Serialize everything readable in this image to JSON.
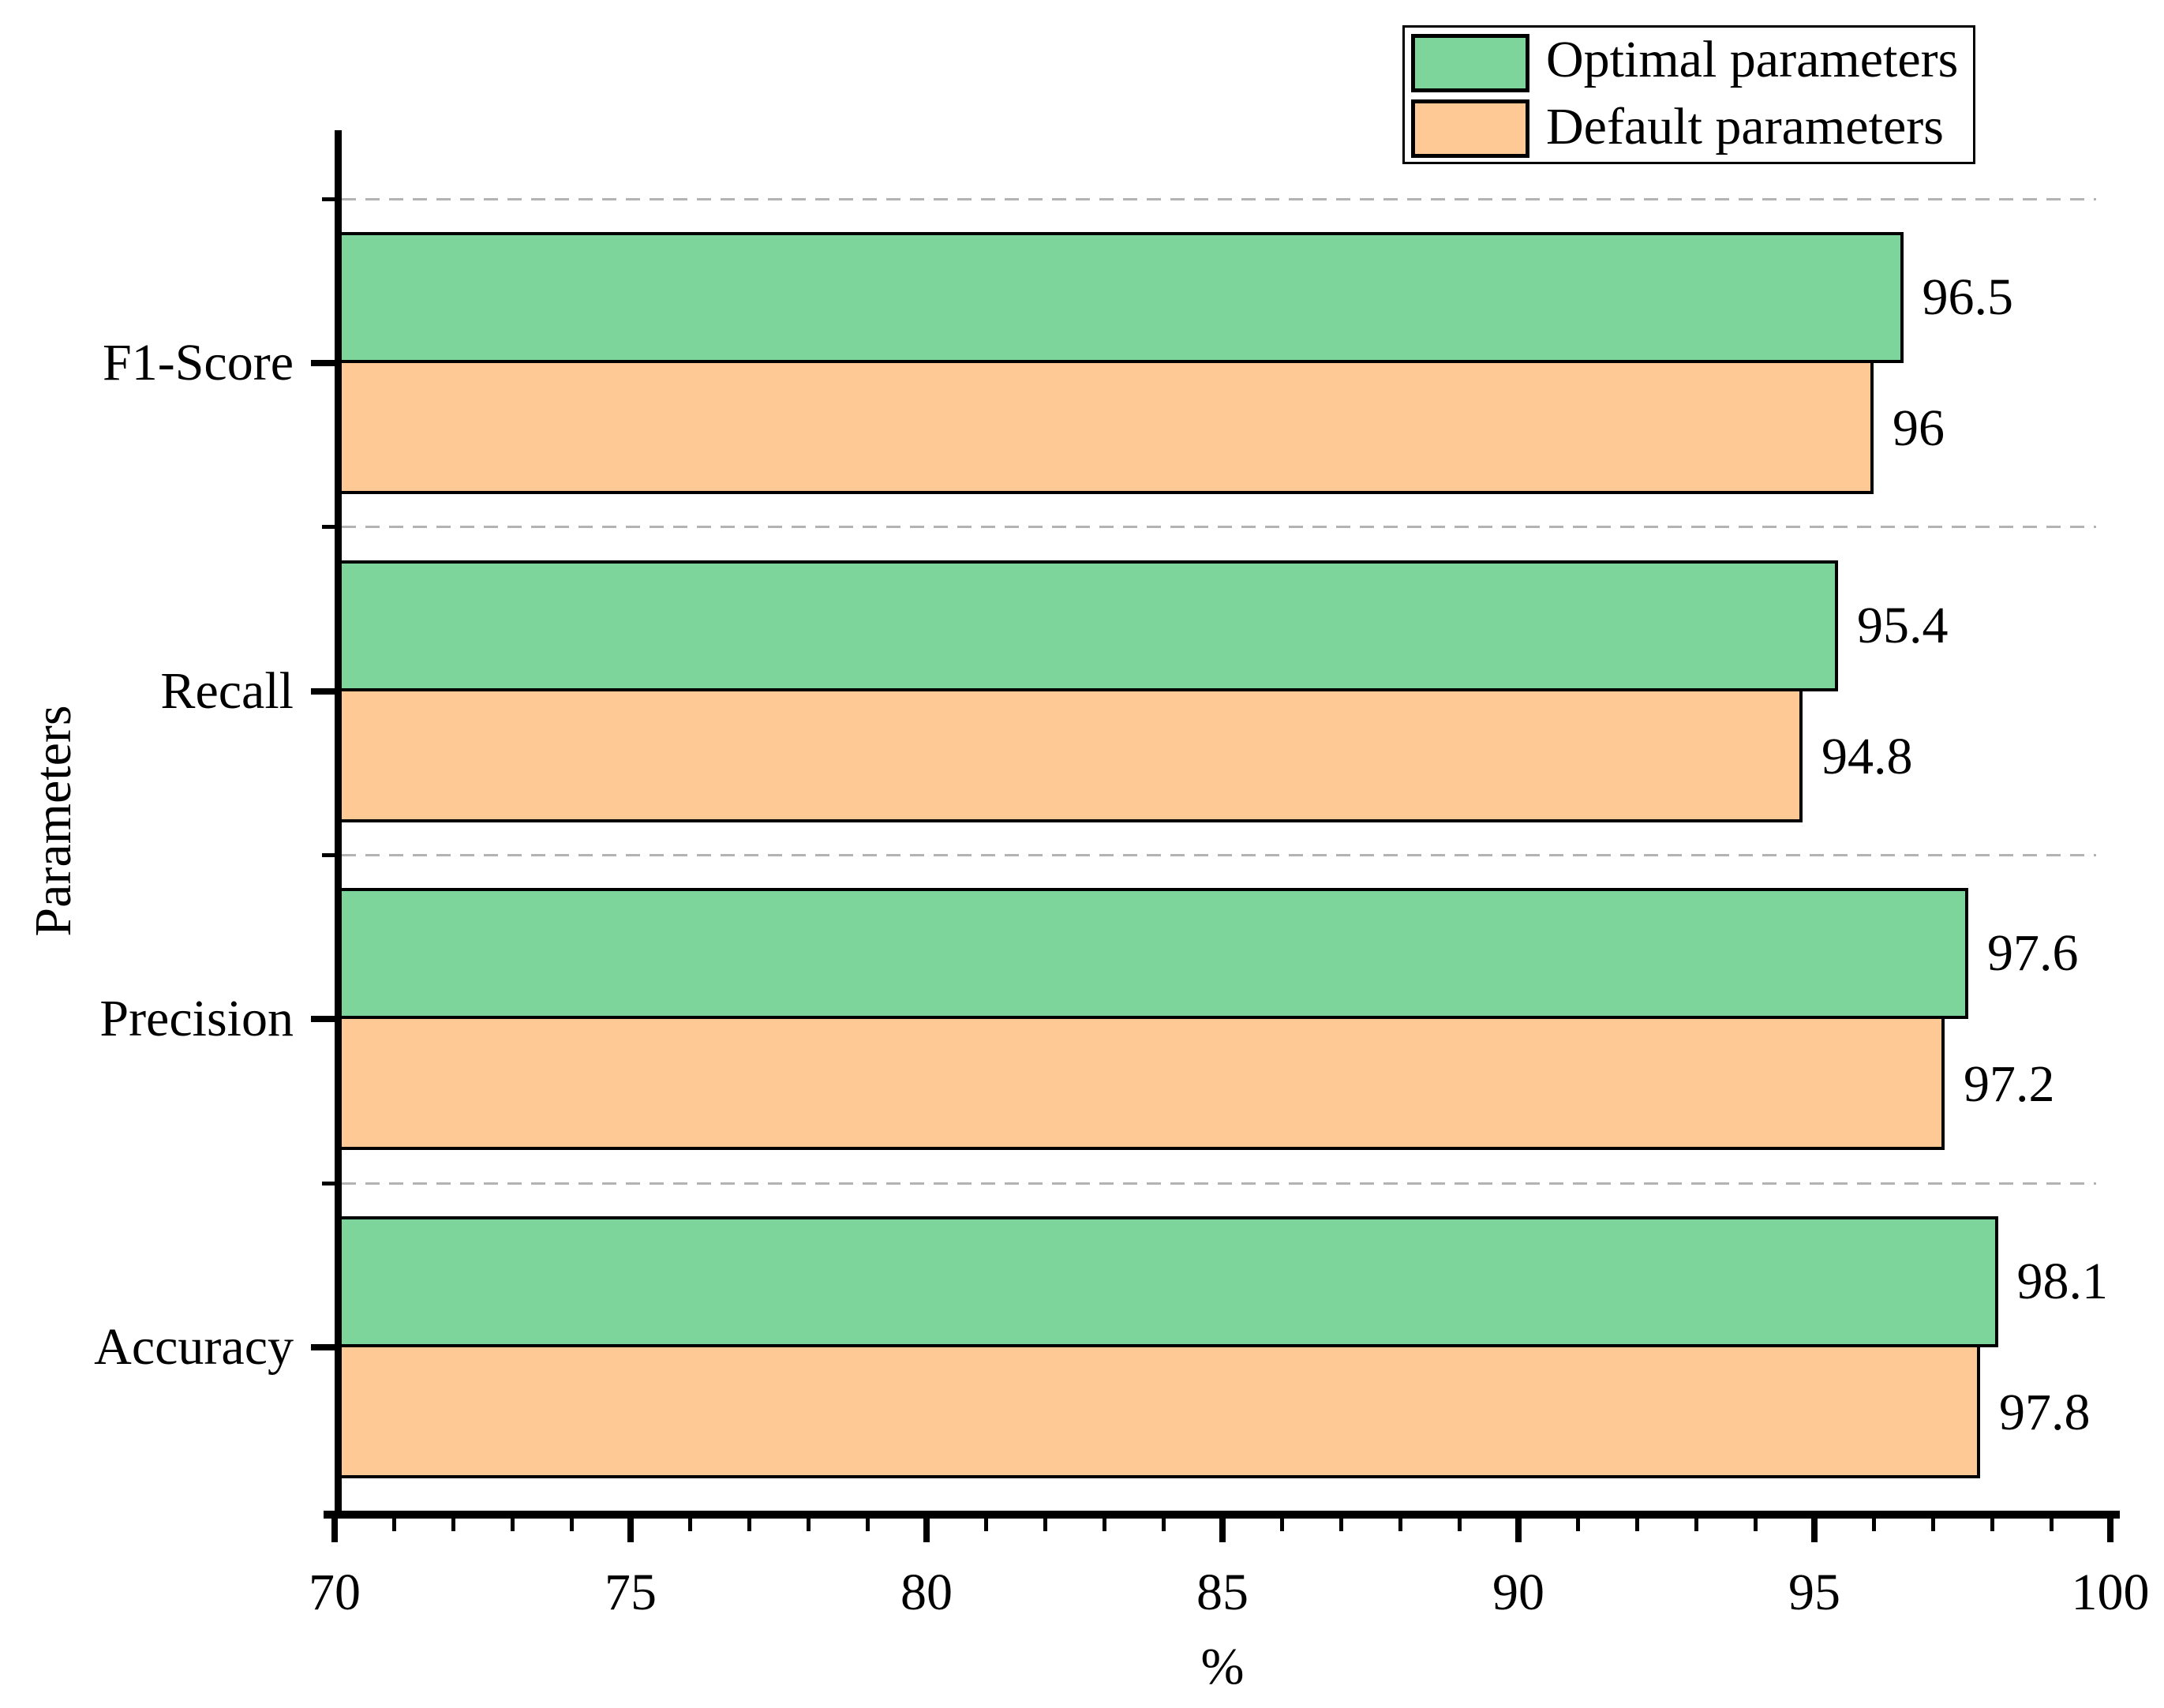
{
  "chart_data": {
    "type": "bar",
    "orientation": "horizontal",
    "title": "",
    "xlabel": "%",
    "ylabel": "Parameters",
    "categories_top_to_bottom": [
      "F1-Score",
      "Recall",
      "Precision",
      "Accuracy"
    ],
    "series": [
      {
        "name": "Optimal parameters",
        "color": "#7ED59B",
        "values": [
          96.5,
          95.4,
          97.6,
          98.1
        ]
      },
      {
        "name": "Default parameters",
        "color": "#FEC994",
        "values": [
          96,
          94.8,
          97.2,
          97.8
        ]
      }
    ],
    "value_label_gap_applies": true,
    "x_axis": {
      "min": 70,
      "max": 100,
      "major_step": 5,
      "minor_step": 1,
      "tick_labels": [
        "70",
        "75",
        "80",
        "85",
        "90",
        "95",
        "100"
      ]
    },
    "grid": {
      "lines": "category-boundaries",
      "style": "dashed",
      "color": "#b3b3b3"
    },
    "legend": {
      "position": "top-right",
      "entries": [
        "Optimal parameters",
        "Default parameters"
      ]
    },
    "colors": {
      "optimal": "#7ED59B",
      "default": "#FEC994",
      "bar_border": "#000000",
      "axis": "#000000",
      "background": "#ffffff",
      "gridline": "#b3b3b3"
    }
  }
}
